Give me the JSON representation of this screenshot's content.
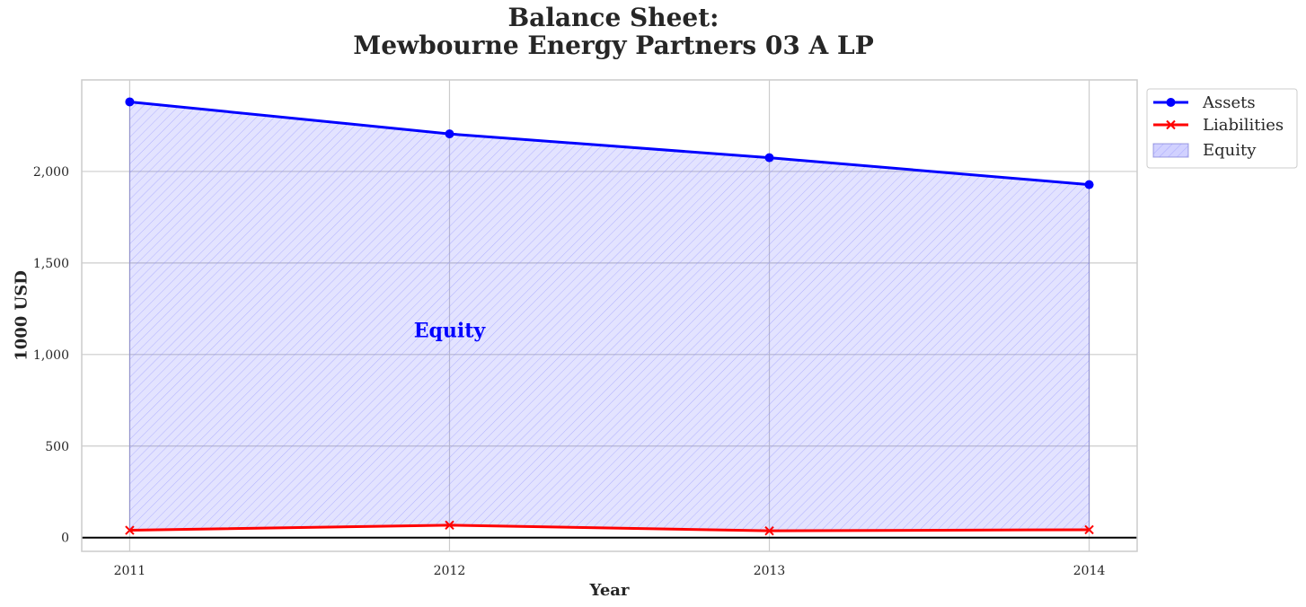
{
  "chart_data": {
    "type": "area",
    "title_lines": [
      "Balance Sheet:",
      "Mewbourne Energy Partners 03 A LP"
    ],
    "xlabel": "Year",
    "ylabel": "1000 USD",
    "x": [
      2011,
      2012,
      2013,
      2014
    ],
    "x_tick_labels": [
      "2011",
      "2012",
      "2013",
      "2014"
    ],
    "xlim": [
      2010.85,
      2014.15
    ],
    "ylim": [
      -75,
      2500
    ],
    "y_ticks": [
      0,
      500,
      1000,
      1500,
      2000
    ],
    "y_tick_labels": [
      "0",
      "500",
      "1,000",
      "1,500",
      "2,000"
    ],
    "grid": true,
    "legend_placement": "outside-top-right",
    "series": [
      {
        "name": "Assets",
        "values": [
          2380,
          2205,
          2075,
          1928
        ],
        "color": "#0000ff",
        "marker": "circle"
      },
      {
        "name": "Liabilities",
        "values": [
          40,
          68,
          37,
          43
        ],
        "color": "#ff0000",
        "marker": "x"
      }
    ],
    "fill": {
      "name": "Equity",
      "between": [
        "Assets",
        "Liabilities"
      ],
      "color": "#0000ff",
      "hatch": "////"
    },
    "annotation": {
      "text": "Equity",
      "x": 2012.0,
      "y": 1130,
      "color": "#0000ff"
    }
  }
}
